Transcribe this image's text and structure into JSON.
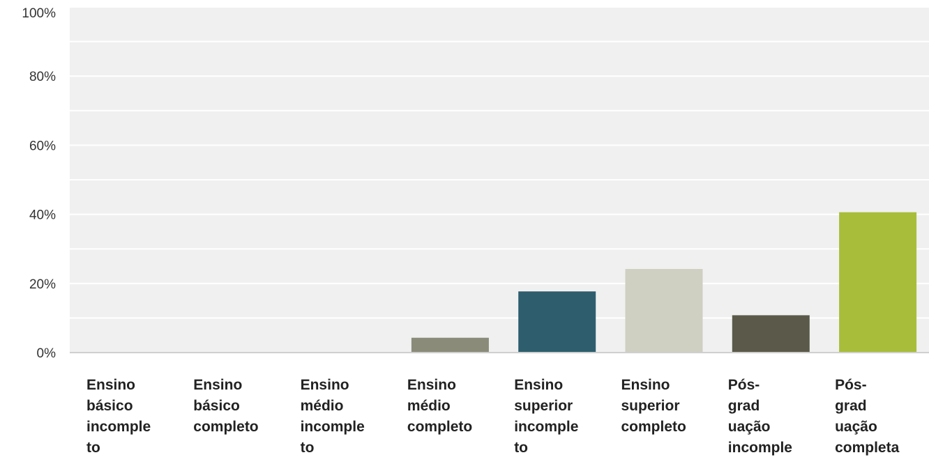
{
  "chart_data": {
    "type": "bar",
    "title": "",
    "xlabel": "",
    "ylabel": "",
    "ylim": [
      0,
      100
    ],
    "yticks": [
      0,
      20,
      40,
      60,
      80,
      100
    ],
    "ytick_labels": [
      "0%",
      "20%",
      "40%",
      "60%",
      "80%",
      "100%"
    ],
    "grid": true,
    "legend": "none",
    "categories": [
      "Ensino\nbásico\nincomple\nto",
      "Ensino\nbásico\ncompleto",
      "Ensino\nmédio\nincomple\nto",
      "Ensino\nmédio\ncompleto",
      "Ensino\nsuperior\nincomple\nto",
      "Ensino\nsuperior\ncompleto",
      "Pós-\ngrad\nuação\nincomple",
      "Pós-\ngrad\nuação\ncompleta"
    ],
    "values": [
      0,
      0,
      0,
      4.3,
      17.7,
      24.2,
      10.8,
      40.6
    ],
    "colors": [
      "#8a8b79",
      "#8a8b79",
      "#8a8b79",
      "#8a8b79",
      "#2e5e6e",
      "#cfcfc2",
      "#5b5a4a",
      "#a8bd3a"
    ]
  }
}
